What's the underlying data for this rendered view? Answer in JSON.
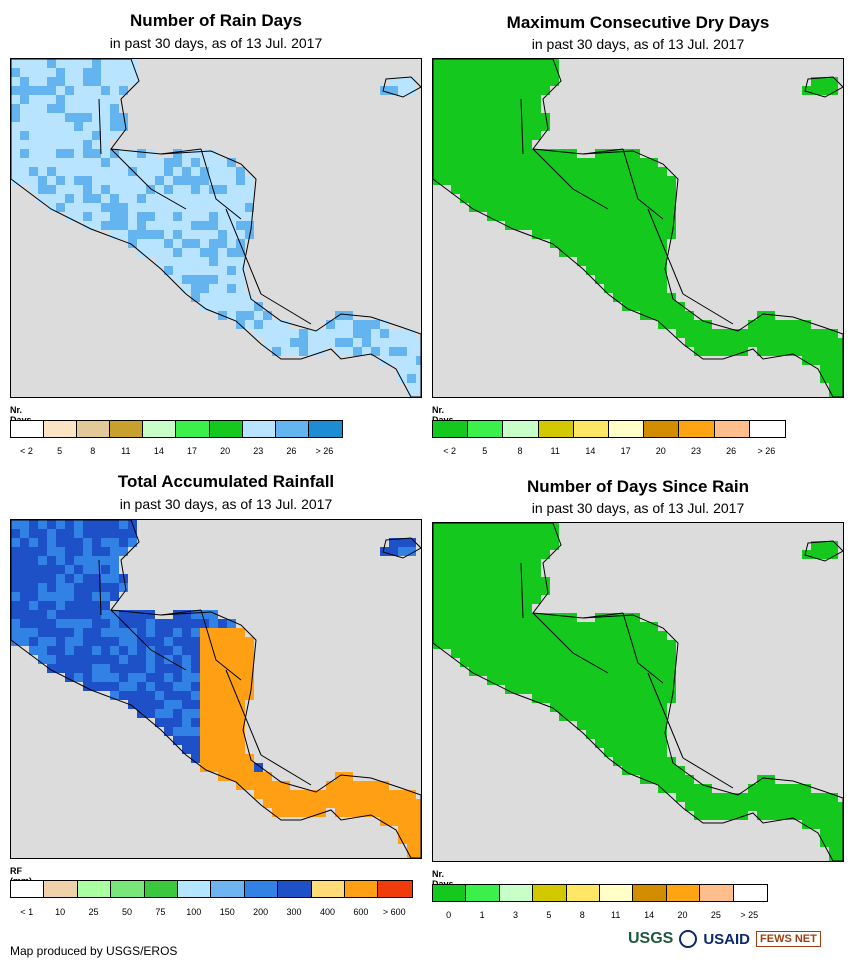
{
  "panels": [
    {
      "id": "rain-days",
      "title": "Number of Rain Days",
      "subtitle": "in past 30 days, as of 13 Jul. 2017",
      "legend_title": "Nr. Days",
      "legend_colors": [
        "#ffffff",
        "#fbe4c4",
        "#e3c898",
        "#c8a02e",
        "#c8ffc8",
        "#3cf04c",
        "#14c81e",
        "#b8e4ff",
        "#64b4f0",
        "#1e8cd2"
      ],
      "legend_labels": [
        "< 2",
        "5",
        "8",
        "11",
        "14",
        "17",
        "20",
        "23",
        "26",
        "> 26"
      ],
      "map_palette": [
        "#14c81e",
        "#3cf04c",
        "#b8e4ff",
        "#64b4f0",
        "#1e8cd2",
        "#e3c898",
        "#c8a02e"
      ]
    },
    {
      "id": "dry-days",
      "title": "Maximum Consecutive Dry Days",
      "subtitle": "in past 30 days, as of 13 Jul. 2017",
      "legend_title": "Nr. Days",
      "legend_colors": [
        "#14c81e",
        "#3cf04c",
        "#c8ffc8",
        "#d2c800",
        "#ffe664",
        "#ffffc8",
        "#d28c00",
        "#ffa514",
        "#ffbe8c",
        "#ffffff"
      ],
      "legend_labels": [
        "< 2",
        "5",
        "8",
        "11",
        "14",
        "17",
        "20",
        "23",
        "26",
        "> 26"
      ],
      "map_palette": [
        "#14c81e",
        "#3cf04c",
        "#c8ffc8",
        "#d2c800",
        "#ffe664"
      ]
    },
    {
      "id": "rainfall",
      "title": "Total Accumulated Rainfall",
      "subtitle": "in past 30 days, as of 13 Jul. 2017",
      "legend_title": "RF (mm)",
      "legend_colors": [
        "#ffffff",
        "#f0d2aa",
        "#aaffa0",
        "#78e678",
        "#3cc83c",
        "#b4e6ff",
        "#6eb4f0",
        "#3282e6",
        "#1e50c8",
        "#ffdc78",
        "#ffa014",
        "#f03c0a"
      ],
      "legend_labels": [
        "< 1",
        "10",
        "25",
        "50",
        "75",
        "100",
        "150",
        "200",
        "300",
        "400",
        "600",
        "> 600"
      ],
      "map_palette": [
        "#1e50c8",
        "#3282e6",
        "#6eb4f0",
        "#ffdc78",
        "#ffa014",
        "#f03c0a",
        "#b4e6ff"
      ]
    },
    {
      "id": "since-rain",
      "title": "Number of Days Since Rain",
      "subtitle": "in past 30 days, as of 13 Jul. 2017",
      "legend_title": "Nr. Days",
      "legend_colors": [
        "#14c81e",
        "#3cf04c",
        "#c8ffc8",
        "#d2c800",
        "#ffe664",
        "#ffffc8",
        "#d28c00",
        "#ffa514",
        "#ffbe8c",
        "#ffffff"
      ],
      "legend_labels": [
        "0",
        "1",
        "3",
        "5",
        "8",
        "11",
        "14",
        "20",
        "25",
        "> 25"
      ],
      "map_palette": [
        "#14c81e",
        "#14c81e",
        "#3cf04c",
        "#c8ffc8",
        "#ffe664"
      ]
    }
  ],
  "footer": {
    "credit": "Map produced by USGS/EROS",
    "logo_usgs": "USGS",
    "logo_usaid": "USAID",
    "logo_fews": "FEWS NET"
  }
}
